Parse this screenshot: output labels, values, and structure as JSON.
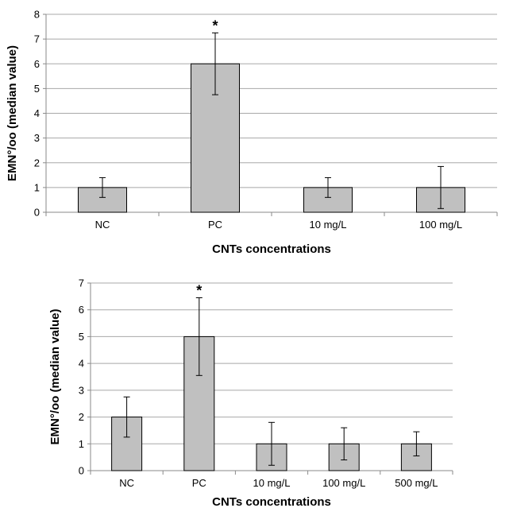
{
  "chart_data": [
    {
      "type": "bar",
      "categories": [
        "NC",
        "PC",
        "10 mg/L",
        "100 mg/L"
      ],
      "values": [
        1,
        6,
        1,
        1
      ],
      "error_low": [
        0.6,
        4.75,
        0.6,
        0.15
      ],
      "error_high": [
        1.4,
        7.25,
        1.4,
        1.85
      ],
      "annotations": [
        "",
        "*",
        "",
        ""
      ],
      "xlabel": "CNTs concentrations",
      "ylabel": "EMN°/oo (median value)",
      "ylim": [
        0,
        8
      ],
      "yticks": [
        0,
        1,
        2,
        3,
        4,
        5,
        6,
        7,
        8
      ],
      "grid": true,
      "bar_color": "#c0c0c0"
    },
    {
      "type": "bar",
      "categories": [
        "NC",
        "PC",
        "10 mg/L",
        "100 mg/L",
        "500 mg/L"
      ],
      "values": [
        2,
        5,
        1,
        1,
        1
      ],
      "error_low": [
        1.25,
        3.55,
        0.2,
        0.4,
        0.55
      ],
      "error_high": [
        2.75,
        6.45,
        1.8,
        1.6,
        1.45
      ],
      "annotations": [
        "",
        "*",
        "",
        "",
        ""
      ],
      "xlabel": "CNTs concentrations",
      "ylabel": "EMN°/oo (median value)",
      "ylim": [
        0,
        7
      ],
      "yticks": [
        0,
        1,
        2,
        3,
        4,
        5,
        6,
        7
      ],
      "grid": true,
      "bar_color": "#c0c0c0"
    }
  ]
}
